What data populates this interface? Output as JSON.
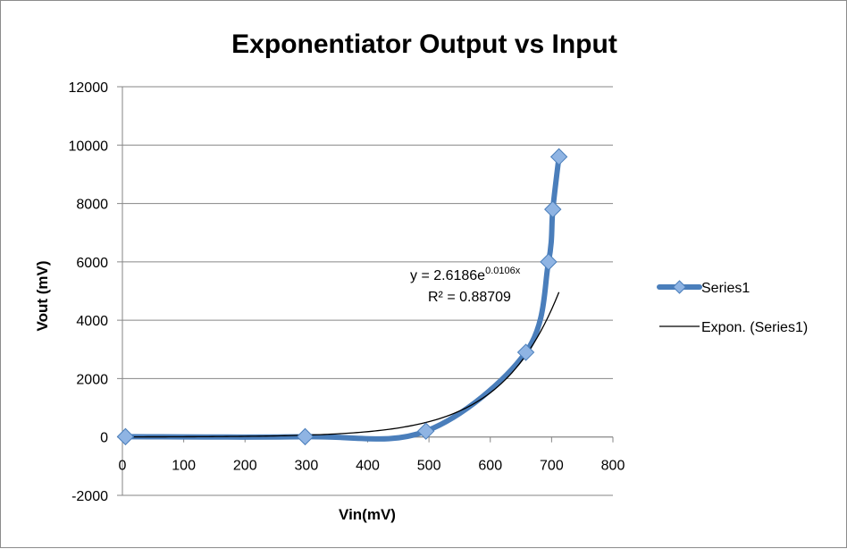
{
  "chart_data": {
    "type": "scatter",
    "title": "Exponentiator Output vs Input",
    "xlabel": "Vin(mV)",
    "ylabel": "Vout (mV)",
    "xlim": [
      0,
      800
    ],
    "ylim": [
      -2000,
      12000
    ],
    "x_ticks": [
      0,
      100,
      200,
      300,
      400,
      500,
      600,
      700,
      800
    ],
    "y_ticks": [
      -2000,
      0,
      2000,
      4000,
      6000,
      8000,
      10000,
      12000
    ],
    "grid": "horizontal",
    "legend_position": "right",
    "series": [
      {
        "name": "Series1",
        "style": "smoothed line with diamond markers",
        "color": "#4a7ebb",
        "marker_color": "#8fb4e3",
        "x": [
          5,
          298,
          495,
          658,
          695,
          702,
          712
        ],
        "y": [
          10,
          10,
          200,
          2900,
          6000,
          7800,
          9600
        ]
      },
      {
        "name": "Expon. (Series1)",
        "style": "trendline",
        "color": "#000000",
        "equation": {
          "prefix": "y = 2.6186e",
          "exponent": "0.0106x"
        },
        "r_squared": "R² = 0.88709",
        "fit": {
          "a": 2.6186,
          "b": 0.0106,
          "x_start": 5,
          "x_end": 712
        }
      }
    ]
  }
}
